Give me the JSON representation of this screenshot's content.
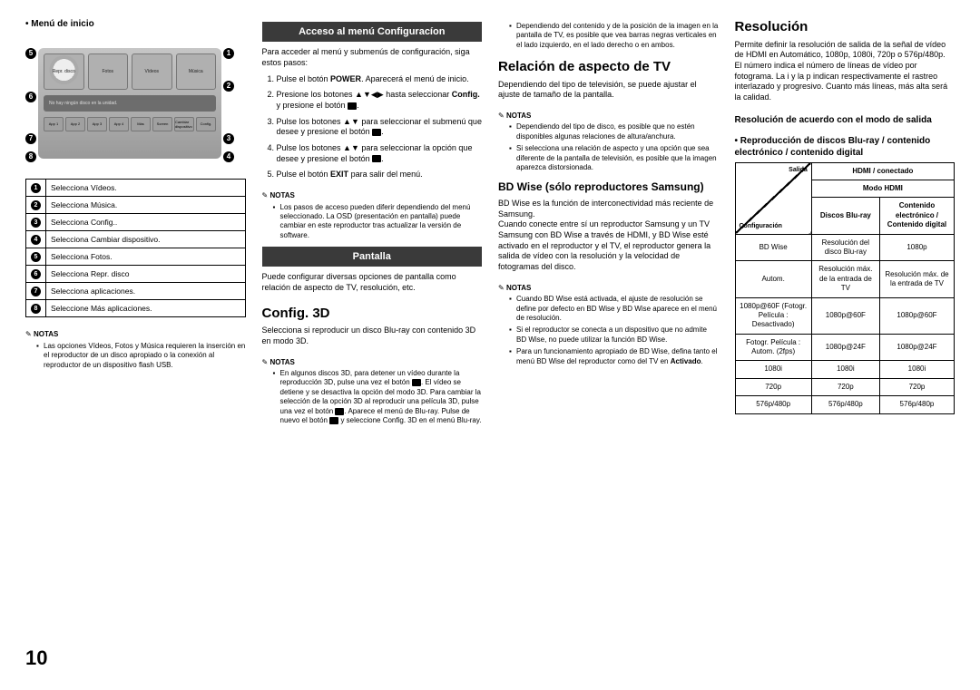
{
  "page_number": "10",
  "col1": {
    "menu_title": "Menú de inicio",
    "mockup": {
      "tiles_top": [
        "Repr. disco",
        "Fotos",
        "Vídeos",
        "Música"
      ],
      "mid": "No hay ningún disco en la unidad.",
      "tiles_bot": [
        "App 1",
        "App 2",
        "App 3",
        "App 4",
        "Más",
        "Screen",
        "Cambiar dispositivo",
        "Config."
      ]
    },
    "legend": [
      "Selecciona Vídeos.",
      "Selecciona Música.",
      "Selecciona Config..",
      "Selecciona Cambiar dispositivo.",
      "Selecciona Fotos.",
      "Selecciona Repr. disco",
      "Selecciona aplicaciones.",
      "Seleccione Más aplicaciones."
    ],
    "notas_label": "NOTAS",
    "notes": [
      "Las opciones Vídeos, Fotos y Música requieren la inserción en el reproductor de un disco apropiado o la conexión al reproductor de un dispositivo flash USB."
    ]
  },
  "col2": {
    "band1": "Acceso al menú Configuracíon",
    "intro": "Para acceder al menú y submenús de configuración, siga estos pasos:",
    "steps": [
      "Pulse el botón <b>POWER</b>. Aparecerá el menú de inicio.",
      "Presione los botones ▲▼◀▶ hasta seleccionar <b>Config.</b> y presione el botón <span class='icon-box'></span>.",
      "Pulse los botones ▲▼ para seleccionar el submenú que desee y presione el botón <span class='icon-box'></span>.",
      "Pulse los botones ▲▼ para seleccionar la opción que desee y presione el botón <span class='icon-box'></span>.",
      "Pulse el botón <b>EXIT</b> para salir del menú."
    ],
    "notas_label": "NOTAS",
    "notes1": [
      "Los pasos de acceso pueden diferir dependiendo del menú seleccionado. La OSD (presentación en pantalla) puede cambiar en este reproductor tras actualizar la versión de software."
    ],
    "band2": "Pantalla",
    "pantalla_body": "Puede configurar diversas opciones de pantalla como relación de aspecto de TV, resolución, etc.",
    "h2_config3d": "Config. 3D",
    "config3d_body": "Selecciona si reproducir un disco Blu-ray con contenido 3D en modo 3D.",
    "notes2_label": "NOTAS",
    "notes2": [
      "En algunos discos 3D, para detener un vídeo durante la reproducción 3D, pulse una vez el botón <span class='icon-box'></span>. El vídeo se detiene y se desactiva la opción del modo 3D. Para cambiar la selección de la opción 3D al reproducir una película 3D, pulse una vez el botón <span class='icon-box'></span>. Aparece el menú de Blu-ray. Pulse de nuevo el botón <span class='icon-box'></span> y seleccione Config. 3D en el menú Blu-ray."
    ]
  },
  "col3": {
    "notes_top": [
      "Dependiendo del contenido y de la posición de la imagen en la pantalla de TV, es posible que vea barras negras verticales en el lado izquierdo, en el lado derecho o en ambos."
    ],
    "h2_rel": "Relación de aspecto de TV",
    "rel_body": "Dependiendo del tipo de televisión, se puede ajustar el ajuste de tamaño de la pantalla.",
    "notas_label": "NOTAS",
    "notes_rel": [
      "Dependiendo del tipo de disco, es posible que no estén disponibles algunas relaciones de altura/anchura.",
      "Si selecciona una relación de aspecto y una opción que sea diferente de la pantalla de televisión, es posible que la imagen aparezca distorsionada."
    ],
    "h3_bdwise": "BD Wise (sólo reproductores Samsung)",
    "bdwise_body": "BD Wise es la función de interconectividad más reciente de Samsung.\nCuando conecte entre sí un reproductor Samsung y un TV Samsung con BD Wise a través de HDMI, y BD Wise esté activado en el reproductor y el TV, el reproductor genera la salida de vídeo con la resolución y la velocidad de fotogramas del disco.",
    "notes_bd_label": "NOTAS",
    "notes_bd": [
      "Cuando BD Wise está activada, el ajuste de resolución se define por defecto en BD Wise y BD Wise aparece en el menú de resolución.",
      "Si el reproductor se conecta a un dispositivo que no admite BD Wise, no puede utilizar la función BD Wise.",
      "Para un funcionamiento apropiado de BD Wise, defina tanto el menú BD Wise del reproductor como del TV en <b>Activado</b>."
    ]
  },
  "col4": {
    "h2_res": "Resolución",
    "res_body": "Permite definir la resolución de salida de la señal de vídeo de HDMI en Automático, 1080p, 1080i, 720p o 576p/480p. El número indica el número de líneas de vídeo por fotograma. La i y la p indican respectivamente el rastreo interlazado y progresivo. Cuanto más líneas, más alta será la calidad.",
    "h4_mode": "Resolución de acuerdo con el modo de salida",
    "h4_repro": "Reproducción de discos Blu-ray / contenido electrónico / contenido digital",
    "table": {
      "diag_top": "Salida",
      "diag_bot": "Configuración",
      "hdr_top": "HDMI / conectado",
      "hdr_sub": "Modo HDMI",
      "hdr_c1": "Discos Blu-ray",
      "hdr_c2": "Contenido electrónico / Contenido digital",
      "rows": [
        [
          "BD Wise",
          "Resolución del disco Blu-ray",
          "1080p"
        ],
        [
          "Autom.",
          "Resolución máx. de la entrada de TV",
          "Resolución máx. de la entrada de TV"
        ],
        [
          "1080p@60F (Fotogr. Película : Desactivado)",
          "1080p@60F",
          "1080p@60F"
        ],
        [
          "Fotogr. Película : Autom. (2fps)",
          "1080p@24F",
          "1080p@24F"
        ],
        [
          "1080i",
          "1080i",
          "1080i"
        ],
        [
          "720p",
          "720p",
          "720p"
        ],
        [
          "576p/480p",
          "576p/480p",
          "576p/480p"
        ]
      ]
    }
  }
}
